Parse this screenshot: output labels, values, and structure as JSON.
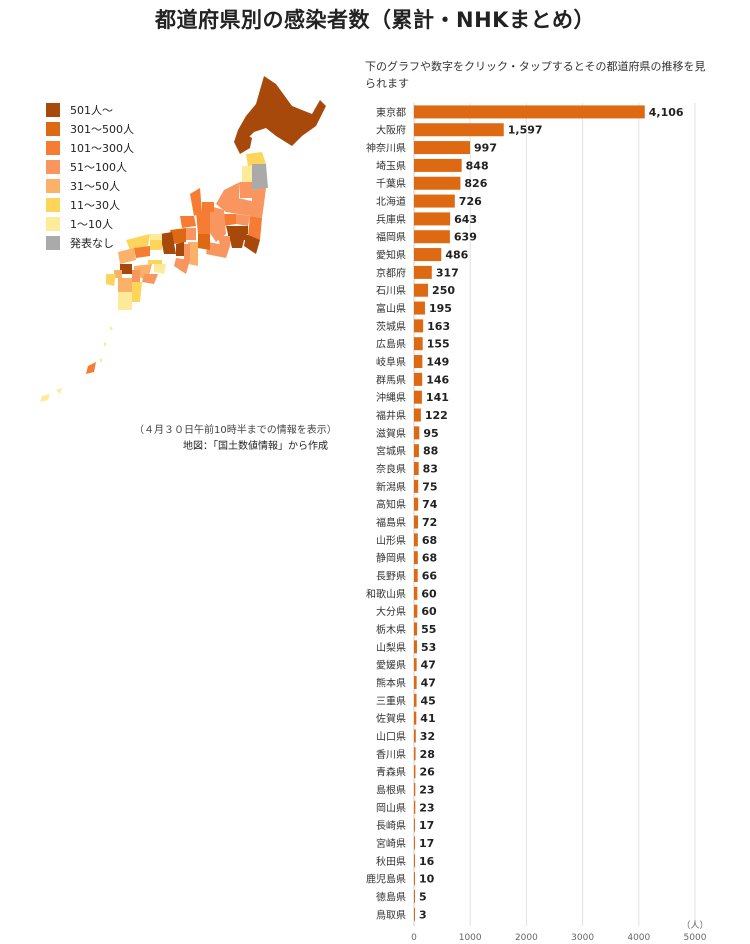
{
  "title": "都道府県別の感染者数（累計・NHKまとめ）",
  "instruction": "下のグラフや数字をクリック・タップするとその都道府県の推移を見られます",
  "legend": [
    {
      "label": "501人～",
      "color": "#a6490a"
    },
    {
      "label": "301～500人",
      "color": "#dd6a12"
    },
    {
      "label": "101～300人",
      "color": "#f77c33"
    },
    {
      "label": "51～100人",
      "color": "#f99660"
    },
    {
      "label": "31～50人",
      "color": "#fbb268"
    },
    {
      "label": "11～30人",
      "color": "#fcd55a"
    },
    {
      "label": "1～10人",
      "color": "#fdeb9a"
    },
    {
      "label": "発表なし",
      "color": "#aaaaaa"
    }
  ],
  "map": {
    "note_date": "（４月３０日午前10時半までの情報を表示）",
    "note_source": "地図：「国土数値情報」から作成"
  },
  "chart_data": {
    "type": "bar",
    "orientation": "horizontal",
    "bar_color": "#dd6a12",
    "unit": "（人）",
    "xlim": [
      0,
      5000
    ],
    "xticks": [
      "0",
      "1000",
      "2000",
      "3000",
      "4000",
      "5000"
    ],
    "categories": [
      "東京都",
      "大阪府",
      "神奈川県",
      "埼玉県",
      "千葉県",
      "北海道",
      "兵庫県",
      "福岡県",
      "愛知県",
      "京都府",
      "石川県",
      "富山県",
      "茨城県",
      "広島県",
      "岐阜県",
      "群馬県",
      "沖縄県",
      "福井県",
      "滋賀県",
      "宮城県",
      "奈良県",
      "新潟県",
      "高知県",
      "福島県",
      "山形県",
      "静岡県",
      "長野県",
      "和歌山県",
      "大分県",
      "栃木県",
      "山梨県",
      "愛媛県",
      "熊本県",
      "三重県",
      "佐賀県",
      "山口県",
      "香川県",
      "青森県",
      "島根県",
      "岡山県",
      "長崎県",
      "宮崎県",
      "秋田県",
      "鹿児島県",
      "徳島県",
      "鳥取県"
    ],
    "values": [
      4106,
      1597,
      997,
      848,
      826,
      726,
      643,
      639,
      486,
      317,
      250,
      195,
      163,
      155,
      149,
      146,
      141,
      122,
      95,
      88,
      83,
      75,
      74,
      72,
      68,
      68,
      66,
      60,
      60,
      55,
      53,
      47,
      47,
      45,
      41,
      32,
      28,
      26,
      23,
      23,
      17,
      17,
      16,
      10,
      5,
      3
    ],
    "value_labels": [
      "4,106",
      "1,597",
      "997",
      "848",
      "826",
      "726",
      "643",
      "639",
      "486",
      "317",
      "250",
      "195",
      "163",
      "155",
      "149",
      "146",
      "141",
      "122",
      "95",
      "88",
      "83",
      "75",
      "74",
      "72",
      "68",
      "68",
      "66",
      "60",
      "60",
      "55",
      "53",
      "47",
      "47",
      "45",
      "41",
      "32",
      "28",
      "26",
      "23",
      "23",
      "17",
      "17",
      "16",
      "10",
      "5",
      "3"
    ]
  }
}
